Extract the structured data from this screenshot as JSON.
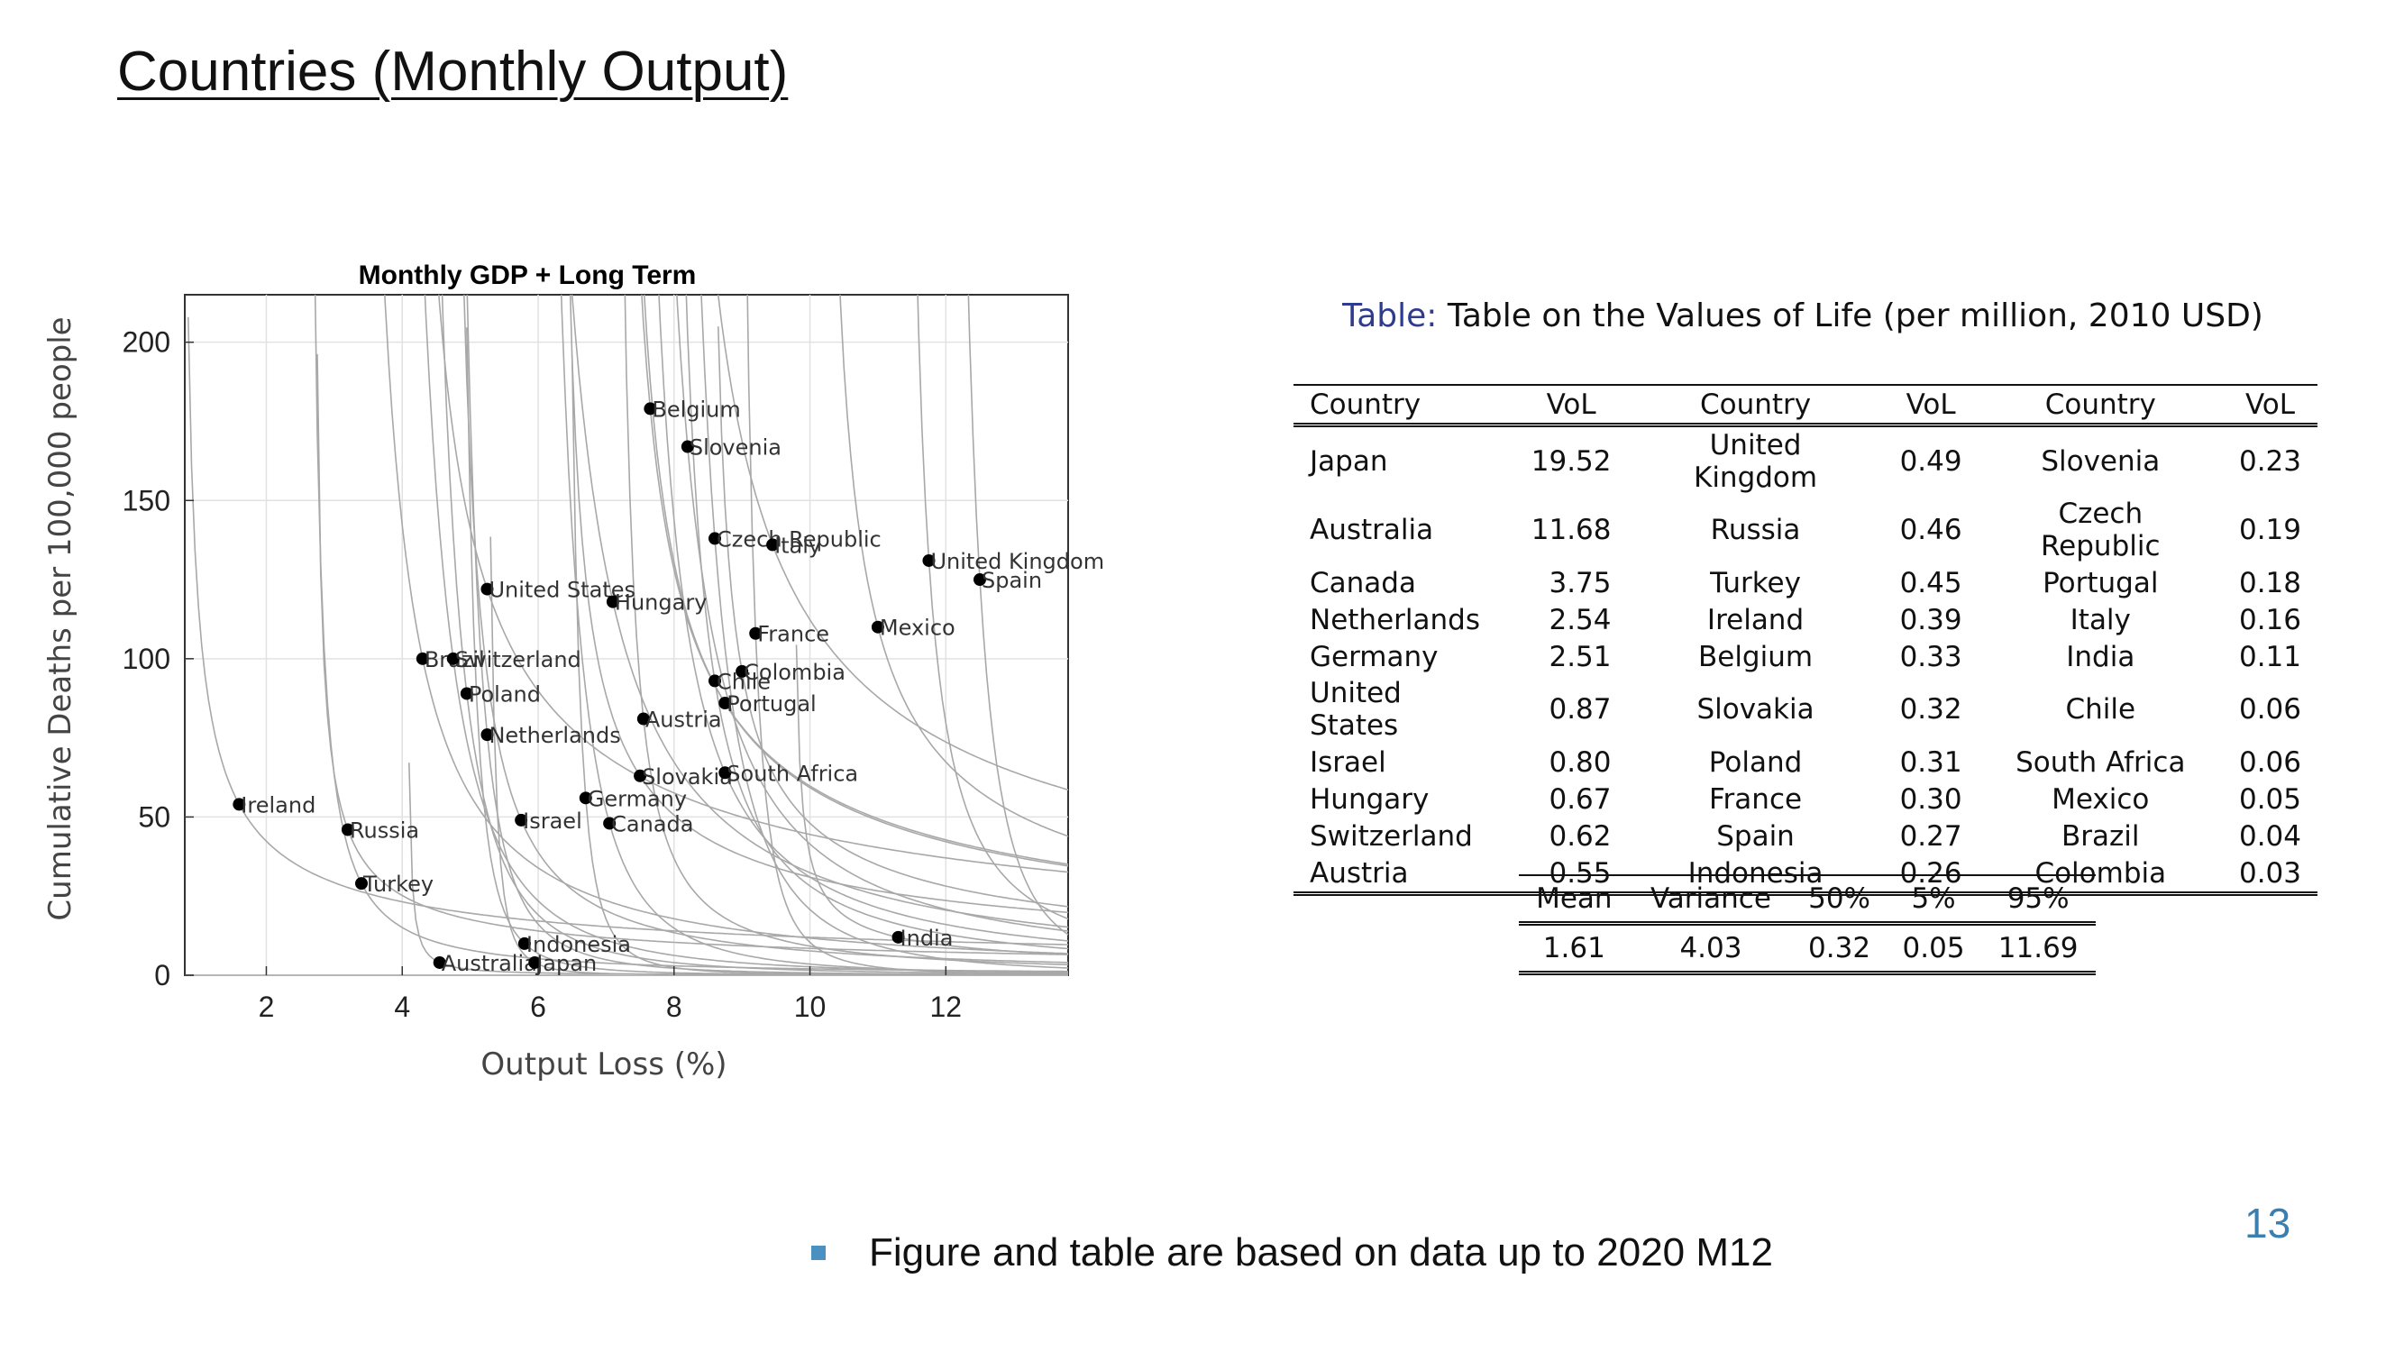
{
  "slide": {
    "title": "Countries (Monthly Output)",
    "page_number": "13",
    "bullet": "Figure and table are based on data up to 2020 M12",
    "bullet_icon": "square-bullet-icon"
  },
  "chart_data": {
    "type": "scatter",
    "title": "Monthly GDP + Long Term",
    "xlabel": "Output Loss (%)",
    "ylabel": "Cumulative Deaths per 100,000 people",
    "xlim": [
      0.8,
      13.8
    ],
    "ylim": [
      0,
      215
    ],
    "xticks": [
      2,
      4,
      6,
      8,
      10,
      12
    ],
    "yticks": [
      0,
      50,
      100,
      150,
      200
    ],
    "grid": true,
    "background_curves": "indifference curves (gray)",
    "points": [
      {
        "label": "Belgium",
        "x": 7.65,
        "y": 179
      },
      {
        "label": "Slovenia",
        "x": 8.2,
        "y": 167
      },
      {
        "label": "Czech Republic",
        "x": 8.6,
        "y": 138
      },
      {
        "label": "Italy",
        "x": 9.45,
        "y": 136
      },
      {
        "label": "United Kingdom",
        "x": 11.75,
        "y": 131
      },
      {
        "label": "Spain",
        "x": 12.5,
        "y": 125
      },
      {
        "label": "United States",
        "x": 5.25,
        "y": 122
      },
      {
        "label": "Hungary",
        "x": 7.1,
        "y": 118
      },
      {
        "label": "France",
        "x": 9.2,
        "y": 108
      },
      {
        "label": "Mexico",
        "x": 11.0,
        "y": 110
      },
      {
        "label": "Brazil",
        "x": 4.3,
        "y": 100
      },
      {
        "label": "Switzerland",
        "x": 4.75,
        "y": 100
      },
      {
        "label": "Colombia",
        "x": 9.0,
        "y": 96
      },
      {
        "label": "Chile",
        "x": 8.6,
        "y": 93
      },
      {
        "label": "Poland",
        "x": 4.95,
        "y": 89
      },
      {
        "label": "Portugal",
        "x": 8.75,
        "y": 86
      },
      {
        "label": "Austria",
        "x": 7.55,
        "y": 81
      },
      {
        "label": "Netherlands",
        "x": 5.25,
        "y": 76
      },
      {
        "label": "Slovakia",
        "x": 7.5,
        "y": 63
      },
      {
        "label": "South Africa",
        "x": 8.75,
        "y": 64
      },
      {
        "label": "Germany",
        "x": 6.7,
        "y": 56
      },
      {
        "label": "Ireland",
        "x": 1.6,
        "y": 54
      },
      {
        "label": "Israel",
        "x": 5.75,
        "y": 49
      },
      {
        "label": "Canada",
        "x": 7.05,
        "y": 48
      },
      {
        "label": "Russia",
        "x": 3.2,
        "y": 46
      },
      {
        "label": "Turkey",
        "x": 3.4,
        "y": 29
      },
      {
        "label": "Indonesia",
        "x": 5.8,
        "y": 10
      },
      {
        "label": "India",
        "x": 11.3,
        "y": 12
      },
      {
        "label": "Australia",
        "x": 4.55,
        "y": 4
      },
      {
        "label": "Japan",
        "x": 5.95,
        "y": 4
      }
    ]
  },
  "vol_table": {
    "caption_label": "Table:",
    "caption_text": "Table on the Values of Life (per million, 2010 USD)",
    "headers": [
      "Country",
      "VoL",
      "Country",
      "VoL",
      "Country",
      "VoL"
    ],
    "rows": [
      [
        "Japan",
        "19.52",
        "United Kingdom",
        "0.49",
        "Slovenia",
        "0.23"
      ],
      [
        "Australia",
        "11.68",
        "Russia",
        "0.46",
        "Czech Republic",
        "0.19"
      ],
      [
        "Canada",
        "3.75",
        "Turkey",
        "0.45",
        "Portugal",
        "0.18"
      ],
      [
        "Netherlands",
        "2.54",
        "Ireland",
        "0.39",
        "Italy",
        "0.16"
      ],
      [
        "Germany",
        "2.51",
        "Belgium",
        "0.33",
        "India",
        "0.11"
      ],
      [
        "United States",
        "0.87",
        "Slovakia",
        "0.32",
        "Chile",
        "0.06"
      ],
      [
        "Israel",
        "0.80",
        "Poland",
        "0.31",
        "South Africa",
        "0.06"
      ],
      [
        "Hungary",
        "0.67",
        "France",
        "0.30",
        "Mexico",
        "0.05"
      ],
      [
        "Switzerland",
        "0.62",
        "Spain",
        "0.27",
        "Brazil",
        "0.04"
      ],
      [
        "Austria",
        "0.55",
        "Indonesia",
        "0.26",
        "Colombia",
        "0.03"
      ]
    ]
  },
  "stats_table": {
    "headers": [
      "Mean",
      "Variance",
      "50%",
      "5%",
      "95%"
    ],
    "values": [
      "1.61",
      "4.03",
      "0.32",
      "0.05",
      "11.69"
    ]
  }
}
